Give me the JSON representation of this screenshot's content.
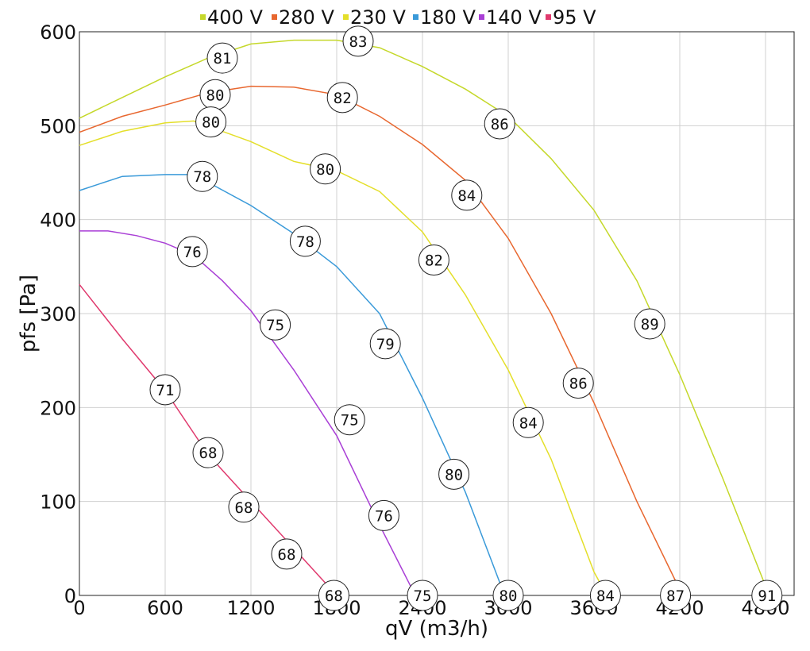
{
  "chart_data": {
    "type": "line",
    "xlabel": "qV (m3/h)",
    "ylabel": "pfs [Pa]",
    "xlim": [
      0,
      5000
    ],
    "ylim": [
      0,
      600
    ],
    "x_ticks": [
      0,
      600,
      1200,
      1800,
      2400,
      3000,
      3600,
      4200,
      4800
    ],
    "y_ticks": [
      0,
      100,
      200,
      300,
      400,
      500,
      600
    ],
    "grid": true,
    "legend_position": "top",
    "series": [
      {
        "name": "400 V",
        "color": "#c5d82a",
        "points": [
          [
            0,
            508
          ],
          [
            300,
            530
          ],
          [
            600,
            552
          ],
          [
            900,
            572
          ],
          [
            1200,
            587
          ],
          [
            1500,
            591
          ],
          [
            1800,
            591
          ],
          [
            2100,
            583
          ],
          [
            2400,
            563
          ],
          [
            2700,
            539
          ],
          [
            3000,
            510
          ],
          [
            3300,
            465
          ],
          [
            3600,
            410
          ],
          [
            3900,
            335
          ],
          [
            4200,
            235
          ],
          [
            4500,
            125
          ],
          [
            4800,
            10
          ],
          [
            4880,
            0
          ]
        ],
        "labels": [
          {
            "x": 1000,
            "y": 572,
            "text": "81"
          },
          {
            "x": 1950,
            "y": 590,
            "text": "83"
          },
          {
            "x": 2940,
            "y": 502,
            "text": "86"
          },
          {
            "x": 3990,
            "y": 289,
            "text": "89"
          },
          {
            "x": 4810,
            "y": 0,
            "text": "91"
          }
        ]
      },
      {
        "name": "280 V",
        "color": "#e8672f",
        "points": [
          [
            0,
            493
          ],
          [
            300,
            510
          ],
          [
            600,
            522
          ],
          [
            900,
            535
          ],
          [
            1200,
            542
          ],
          [
            1500,
            541
          ],
          [
            1800,
            533
          ],
          [
            2100,
            510
          ],
          [
            2400,
            480
          ],
          [
            2700,
            442
          ],
          [
            3000,
            380
          ],
          [
            3300,
            300
          ],
          [
            3600,
            205
          ],
          [
            3900,
            100
          ],
          [
            4220,
            0
          ]
        ],
        "labels": [
          {
            "x": 950,
            "y": 533,
            "text": "80"
          },
          {
            "x": 1840,
            "y": 530,
            "text": "82"
          },
          {
            "x": 2710,
            "y": 426,
            "text": "84"
          },
          {
            "x": 3490,
            "y": 226,
            "text": "86"
          },
          {
            "x": 4170,
            "y": 0,
            "text": "87"
          }
        ]
      },
      {
        "name": "230 V",
        "color": "#e4df2a",
        "points": [
          [
            0,
            479
          ],
          [
            300,
            494
          ],
          [
            600,
            503
          ],
          [
            800,
            505
          ],
          [
            1200,
            483
          ],
          [
            1500,
            462
          ],
          [
            1800,
            452
          ],
          [
            2100,
            430
          ],
          [
            2400,
            387
          ],
          [
            2700,
            320
          ],
          [
            3000,
            240
          ],
          [
            3300,
            145
          ],
          [
            3600,
            25
          ],
          [
            3690,
            0
          ]
        ],
        "labels": [
          {
            "x": 920,
            "y": 504,
            "text": "80"
          },
          {
            "x": 1720,
            "y": 454,
            "text": "80"
          },
          {
            "x": 2480,
            "y": 357,
            "text": "82"
          },
          {
            "x": 3140,
            "y": 184,
            "text": "84"
          },
          {
            "x": 3680,
            "y": 0,
            "text": "84"
          }
        ]
      },
      {
        "name": "180 V",
        "color": "#3a9ad9",
        "points": [
          [
            0,
            431
          ],
          [
            300,
            446
          ],
          [
            600,
            448
          ],
          [
            800,
            448
          ],
          [
            1200,
            415
          ],
          [
            1500,
            385
          ],
          [
            1800,
            350
          ],
          [
            2100,
            300
          ],
          [
            2400,
            210
          ],
          [
            2700,
            110
          ],
          [
            2950,
            10
          ],
          [
            2990,
            0
          ]
        ],
        "labels": [
          {
            "x": 860,
            "y": 446,
            "text": "78"
          },
          {
            "x": 1580,
            "y": 377,
            "text": "78"
          },
          {
            "x": 2140,
            "y": 268,
            "text": "79"
          },
          {
            "x": 2620,
            "y": 129,
            "text": "80"
          },
          {
            "x": 3000,
            "y": 0,
            "text": "80"
          }
        ]
      },
      {
        "name": "140 V",
        "color": "#a93fd6",
        "points": [
          [
            0,
            388
          ],
          [
            200,
            388
          ],
          [
            400,
            383
          ],
          [
            600,
            375
          ],
          [
            800,
            362
          ],
          [
            1000,
            335
          ],
          [
            1200,
            303
          ],
          [
            1500,
            240
          ],
          [
            1800,
            170
          ],
          [
            2100,
            75
          ],
          [
            2300,
            15
          ],
          [
            2350,
            0
          ]
        ],
        "labels": [
          {
            "x": 790,
            "y": 366,
            "text": "76"
          },
          {
            "x": 1370,
            "y": 288,
            "text": "75"
          },
          {
            "x": 1890,
            "y": 187,
            "text": "75"
          },
          {
            "x": 2130,
            "y": 85,
            "text": "76"
          },
          {
            "x": 2400,
            "y": 0,
            "text": "75"
          }
        ]
      },
      {
        "name": "95 V",
        "color": "#e03a6e",
        "points": [
          [
            0,
            331
          ],
          [
            300,
            273
          ],
          [
            600,
            218
          ],
          [
            900,
            150
          ],
          [
            1200,
            100
          ],
          [
            1500,
            50
          ],
          [
            1800,
            0
          ]
        ],
        "labels": [
          {
            "x": 600,
            "y": 219,
            "text": "71"
          },
          {
            "x": 900,
            "y": 152,
            "text": "68"
          },
          {
            "x": 1150,
            "y": 94,
            "text": "68"
          },
          {
            "x": 1450,
            "y": 44,
            "text": "68"
          },
          {
            "x": 1780,
            "y": 0,
            "text": "68"
          }
        ]
      }
    ]
  }
}
